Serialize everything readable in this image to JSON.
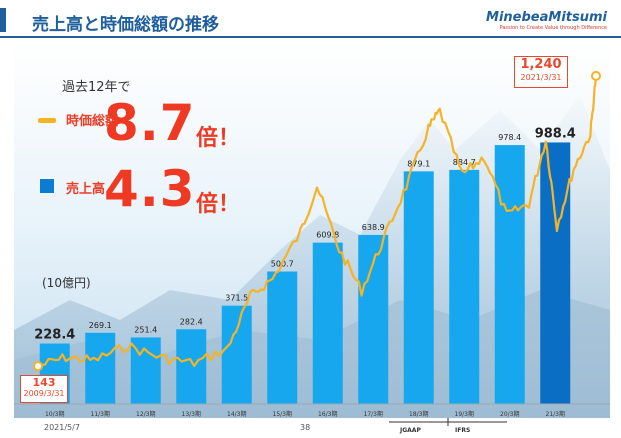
{
  "slide": {
    "title": "売上高と時価総額の推移",
    "logo": "MinebeaMitsumi",
    "tagline": "Passion to Create Value through Difference",
    "footer_date": "2021/5/7",
    "page_number": "38"
  },
  "summary": {
    "period": "過去12年で",
    "market_cap_label": "時価総額",
    "market_cap_multiple": "8.7",
    "net_sales_label": "売上高",
    "net_sales_multiple": "4.3",
    "suffix": "倍！",
    "unit": "(10億円)"
  },
  "callouts": {
    "start_value": "143",
    "start_date": "2009/3/31",
    "end_value": "1,240",
    "end_date": "2021/3/31"
  },
  "colors": {
    "bar": "#16a7ee",
    "bar_last": "#0a6fc4",
    "line": "#f5b325",
    "accent": "#ee3a22",
    "title": "#1f5f9c"
  },
  "chart_data": {
    "type": "bar",
    "categories": [
      "10/3期",
      "11/3期",
      "12/3期",
      "13/3期",
      "14/3期",
      "15/3期",
      "16/3期",
      "17/3期",
      "18/3期",
      "19/3期",
      "20/3期",
      "21/3期"
    ],
    "series": [
      {
        "name": "売上高",
        "values": [
          228.4,
          269.1,
          251.4,
          282.4,
          371.5,
          500.7,
          609.8,
          638.9,
          879.1,
          884.7,
          978.4,
          988.4
        ]
      }
    ],
    "value_labels": [
      "228.4",
      "269.1",
      "251.4",
      "282.4",
      "371.5",
      "500.7",
      "609.8",
      "638.9",
      "879.1",
      "884.7",
      "978.4",
      "988.4"
    ],
    "market_cap_line": {
      "name": "時価総額",
      "start": {
        "date": "2009/3/31",
        "value": 143
      },
      "end": {
        "date": "2021/3/31",
        "value": 1240
      }
    },
    "accounting_standards": [
      "JGAAP",
      "IFRS"
    ],
    "ylim": [
      0,
      1300
    ],
    "ylabel": "(10億円)",
    "grid": false
  }
}
